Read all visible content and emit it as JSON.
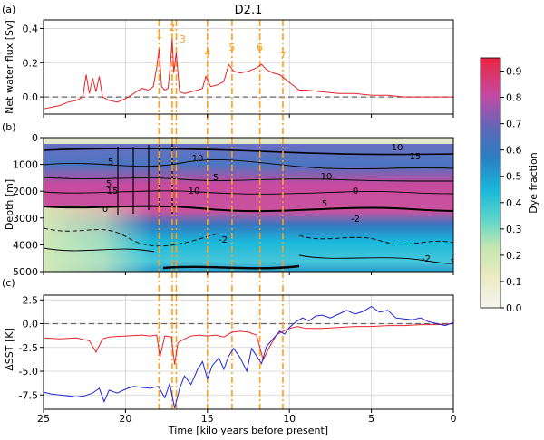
{
  "figure": {
    "title": "D2.1",
    "xlabel": "Time [kilo years before present]",
    "x_ticks": [
      "25",
      "20",
      "15",
      "10",
      "5",
      "0"
    ],
    "event_labels": [
      "1",
      "2",
      "3",
      "4",
      "5",
      "6",
      "7"
    ],
    "event_color": "#ff9f1a"
  },
  "chart_data": [
    {
      "panel": "(a)",
      "type": "line",
      "ylabel": "Net water flux [Sv]",
      "xlim": [
        25,
        0
      ],
      "ylim": [
        -0.1,
        0.45
      ],
      "yticks": [
        "0.4",
        "0.2",
        "0.0"
      ],
      "grid": true,
      "reference_line": 0,
      "series": [
        {
          "color": "#e8242c",
          "x": [
            25,
            24.5,
            24,
            23.5,
            23,
            22.6,
            22.4,
            22.2,
            22.0,
            21.8,
            21.6,
            21.4,
            21.0,
            20.5,
            20.0,
            19.5,
            19.0,
            18.6,
            18.3,
            18.1,
            17.95,
            17.8,
            17.6,
            17.4,
            17.25,
            17.15,
            17.05,
            16.9,
            16.7,
            16.4,
            16.0,
            15.6,
            15.3,
            15.1,
            14.8,
            14.4,
            14.0,
            13.7,
            13.4,
            13.0,
            12.5,
            12.0,
            11.7,
            11.4,
            11.0,
            10.6,
            10.2,
            9.8,
            9.4,
            9.0,
            8.0,
            7.0,
            6.0,
            5.0,
            4.0,
            3.0,
            2.0,
            1.0,
            0.0
          ],
          "y": [
            -0.07,
            -0.06,
            -0.05,
            -0.03,
            -0.02,
            0.0,
            0.13,
            0.02,
            0.11,
            0.03,
            0.12,
            0.0,
            -0.02,
            -0.03,
            -0.01,
            0.02,
            0.05,
            0.04,
            0.06,
            0.17,
            0.28,
            0.06,
            0.04,
            0.05,
            0.2,
            0.34,
            0.14,
            0.26,
            0.03,
            0.02,
            0.03,
            0.04,
            0.05,
            0.12,
            0.06,
            0.07,
            0.09,
            0.19,
            0.15,
            0.14,
            0.15,
            0.17,
            0.19,
            0.16,
            0.14,
            0.13,
            0.1,
            0.07,
            0.04,
            0.04,
            0.03,
            0.02,
            0.02,
            0.01,
            0.01,
            0.0,
            0.0,
            0.0,
            0.0
          ]
        }
      ]
    },
    {
      "panel": "(b)",
      "type": "heatmap",
      "ylabel": "Depth [m]",
      "xlim": [
        25,
        0
      ],
      "ylim": [
        5000,
        0
      ],
      "yticks": [
        "0",
        "1000",
        "2000",
        "3000",
        "4000",
        "5000"
      ],
      "contour_labels": [
        "10",
        "15",
        "5",
        "10",
        "5",
        "10",
        "5",
        "0",
        "15",
        "10",
        "5",
        "0",
        "-2",
        "-2",
        "-2"
      ],
      "colorbar": {
        "label": "Dye fraction",
        "ticks": [
          "0.9",
          "0.8",
          "0.7",
          "0.6",
          "0.5",
          "0.4",
          "0.3",
          "0.2",
          "0.1",
          "0.0"
        ],
        "range": [
          0.0,
          0.95
        ]
      }
    },
    {
      "panel": "(c)",
      "type": "line",
      "ylabel": "ΔSST [K]",
      "xlim": [
        25,
        0
      ],
      "ylim": [
        -9,
        3
      ],
      "yticks": [
        "2.5",
        "0.0",
        "-2.5",
        "-5.0",
        "-7.5"
      ],
      "grid": true,
      "reference_line": 0,
      "series": [
        {
          "color": "#e8242c",
          "x": [
            25,
            24,
            23,
            22.2,
            21.8,
            21.4,
            21,
            20,
            19,
            18.5,
            18.1,
            17.9,
            17.6,
            17.2,
            17.0,
            16.8,
            16.4,
            16.0,
            15.5,
            15.0,
            14.5,
            14.0,
            13.5,
            13.0,
            12.5,
            12.0,
            11.6,
            11.2,
            10.8,
            10.4,
            10.0,
            9.5,
            9.0,
            8.0,
            7.0,
            6.0,
            5.0,
            4.0,
            3.0,
            2.0,
            1.0,
            0.0
          ],
          "y": [
            -1.5,
            -1.6,
            -1.5,
            -1.8,
            -3.0,
            -1.6,
            -1.4,
            -1.3,
            -1.2,
            -1.3,
            -1.2,
            -3.5,
            -1.3,
            -1.4,
            -4.3,
            -2.0,
            -1.6,
            -1.3,
            -1.2,
            -1.3,
            -1.2,
            -1.4,
            -0.9,
            -0.8,
            -0.9,
            -1.2,
            -3.8,
            -2.4,
            -1.2,
            -0.8,
            -0.5,
            -0.3,
            -0.5,
            -0.5,
            -0.4,
            -0.3,
            -0.3,
            -0.2,
            -0.2,
            -0.1,
            -0.1,
            0.0
          ]
        },
        {
          "color": "#1f24d6",
          "x": [
            25,
            24.5,
            24,
            23.5,
            23,
            22.5,
            22,
            21.6,
            21.3,
            21.0,
            20.5,
            20.0,
            19.5,
            19.0,
            18.5,
            18.0,
            17.6,
            17.3,
            17.0,
            16.7,
            16.4,
            16.0,
            15.6,
            15.3,
            15.0,
            14.7,
            14.3,
            14.0,
            13.7,
            13.4,
            13.0,
            12.6,
            12.3,
            12.0,
            11.7,
            11.4,
            11.0,
            10.6,
            10.3,
            10.0,
            9.6,
            9.2,
            8.8,
            8.4,
            8.0,
            7.5,
            7.0,
            6.5,
            6.0,
            5.5,
            5.0,
            4.5,
            4.0,
            3.5,
            3.0,
            2.5,
            2.0,
            1.5,
            1.0,
            0.5,
            0.0
          ],
          "y": [
            -7.2,
            -7.4,
            -7.5,
            -7.6,
            -7.7,
            -7.6,
            -7.3,
            -6.8,
            -8.2,
            -7.0,
            -7.3,
            -6.9,
            -6.6,
            -6.7,
            -6.8,
            -6.6,
            -7.8,
            -6.3,
            -8.9,
            -6.8,
            -5.5,
            -6.4,
            -4.8,
            -4.0,
            -5.8,
            -4.4,
            -3.6,
            -4.8,
            -3.4,
            -2.6,
            -3.6,
            -5.0,
            -2.6,
            -3.4,
            -4.2,
            -2.4,
            -1.6,
            -0.8,
            -1.1,
            -0.4,
            0.2,
            0.6,
            0.3,
            0.8,
            0.9,
            0.6,
            1.0,
            1.4,
            1.0,
            1.3,
            1.8,
            1.2,
            1.4,
            0.6,
            0.5,
            0.4,
            0.6,
            0.2,
            0.0,
            -0.2,
            0.1
          ]
        }
      ]
    }
  ],
  "event_times_kyr": [
    17.95,
    17.15,
    16.9,
    15.0,
    13.5,
    11.8,
    10.4
  ]
}
